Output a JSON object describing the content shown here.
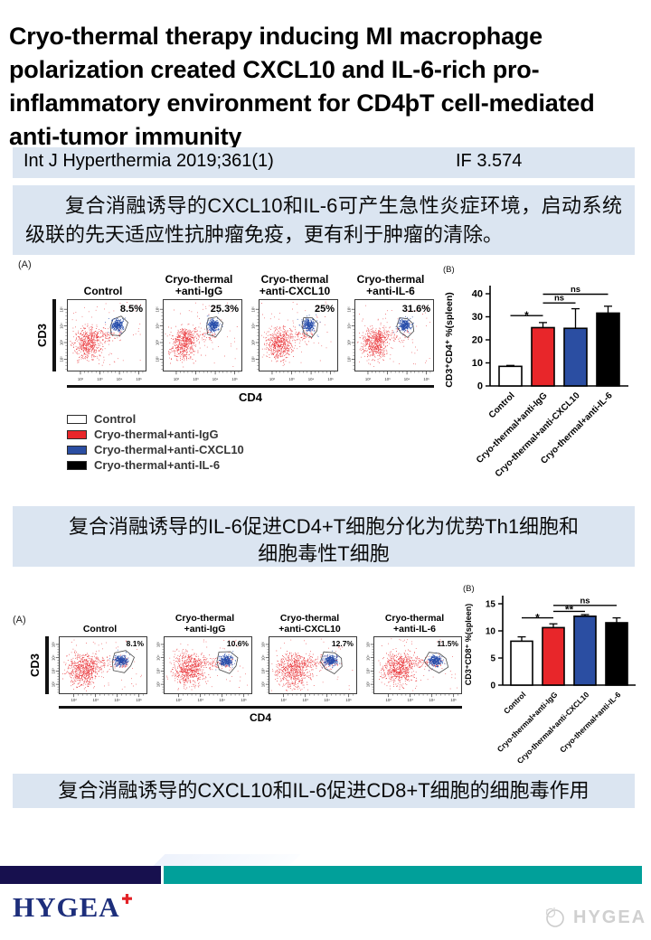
{
  "header": {
    "title": "Cryo-thermal therapy inducing MI macrophage polarization created CXCL10 and IL-6-rich pro-inflammatory environment for CD4þT cell-mediated anti-tumor immunity",
    "citation": "Int J Hyperthermia 2019;361(1)",
    "impact_factor": "IF 3.574"
  },
  "captions": {
    "block1": "复合消融诱导的CXCL10和IL-6可产生急性炎症环境，启动系统级联的先天适应性抗肿瘤免疫，更有利于肿瘤的清除。",
    "block2_lines": [
      "复合消融诱导的IL-6促进CD4+T细胞分化为优势Th1细胞和",
      "细胞毒性T细胞"
    ],
    "block3": "复合消融诱导的CXCL10和IL-6促进CD8+T细胞的细胞毒作用"
  },
  "colors": {
    "highlight_bg": "#dbe5f1",
    "red": "#e8262a",
    "blue": "#2b4ea2",
    "black": "#000000",
    "navy_bar": "#17104e",
    "teal_bar": "#01a09a",
    "brand_navy": "#1d2e7b",
    "cross_red": "#e32227"
  },
  "legend": {
    "items": [
      {
        "label": "Control",
        "color": "#ffffff"
      },
      {
        "label": "Cryo-thermal+anti-IgG",
        "color": "#e8262a"
      },
      {
        "label": "Cryo-thermal+anti-CXCL10",
        "color": "#2b4ea2"
      },
      {
        "label": "Cryo-thermal+anti-IL-6",
        "color": "#000000"
      }
    ]
  },
  "flow_figures": [
    {
      "id": "fig1-a",
      "panel_label": "(A)",
      "xlabel": "CD4",
      "ylabel": "CD3",
      "tick_labels": [
        "10²",
        "10³",
        "10⁴",
        "10⁵"
      ],
      "plots": [
        {
          "title_lines": [
            "Control"
          ],
          "percent": "8.5%"
        },
        {
          "title_lines": [
            "Cryo-thermal",
            "+anti-IgG"
          ],
          "percent": "25.3%"
        },
        {
          "title_lines": [
            "Cryo-thermal",
            "+anti-CXCL10"
          ],
          "percent": "25%"
        },
        {
          "title_lines": [
            "Cryo-thermal",
            "+anti-IL-6"
          ],
          "percent": "31.6%"
        }
      ]
    },
    {
      "id": "fig2-a",
      "panel_label": "(A)",
      "xlabel": "CD4",
      "ylabel": "CD3",
      "tick_labels": [
        "10²",
        "10³",
        "10⁴",
        "10⁵"
      ],
      "plots": [
        {
          "title_lines": [
            "Control"
          ],
          "percent": "8.1%"
        },
        {
          "title_lines": [
            "Cryo-thermal",
            "+anti-IgG"
          ],
          "percent": "10.6%"
        },
        {
          "title_lines": [
            "Cryo-thermal",
            "+anti-CXCL10"
          ],
          "percent": "12.7%"
        },
        {
          "title_lines": [
            "Cryo-thermal",
            "+anti-IL-6"
          ],
          "percent": "11.5%"
        }
      ]
    }
  ],
  "chart_data": [
    {
      "id": "fig1-b",
      "type": "bar",
      "panel_label": "(B)",
      "ylabel": "CD3⁺CD4⁺ %(spleen)",
      "categories": [
        "Control",
        "Cryo-thermal+anti-IgG",
        "Cryo-thermal+anti-CXCL10",
        "Cryo-thermal+anti-IL-6"
      ],
      "values": [
        8.5,
        25.3,
        25,
        31.6
      ],
      "errors": [
        0.4,
        2.2,
        8.5,
        3.0
      ],
      "bar_colors": [
        "#ffffff",
        "#e8262a",
        "#2b4ea2",
        "#000000"
      ],
      "ylim": [
        0,
        40
      ],
      "yticks": [
        0,
        10,
        20,
        30,
        40
      ],
      "legend_position": "none",
      "grid": false,
      "significance": [
        {
          "from": 0,
          "to": 1,
          "label": "*",
          "y": 30.5
        },
        {
          "from": 1,
          "to": 2,
          "label": "ns",
          "y": 36
        },
        {
          "from": 1,
          "to": 3,
          "label": "ns",
          "y": 39.8
        }
      ]
    },
    {
      "id": "fig2-b",
      "type": "bar",
      "panel_label": "(B)",
      "ylabel": "CD3⁺CD8⁺ %(spleen)",
      "categories": [
        "Control",
        "Cryo-thermal+anti-IgG",
        "Cryo-thermal+anti-CXCL10",
        "Cryo-thermal+anti-IL-6"
      ],
      "values": [
        8.1,
        10.6,
        12.7,
        11.5
      ],
      "errors": [
        0.8,
        0.7,
        0.3,
        0.9
      ],
      "bar_colors": [
        "#ffffff",
        "#e8262a",
        "#2b4ea2",
        "#000000"
      ],
      "ylim": [
        0,
        15
      ],
      "yticks": [
        0,
        5,
        10,
        15
      ],
      "legend_position": "none",
      "grid": false,
      "significance": [
        {
          "from": 0,
          "to": 1,
          "label": "*",
          "y": 12.4
        },
        {
          "from": 1,
          "to": 2,
          "label": "**",
          "y": 13.6
        },
        {
          "from": 1,
          "to": 3,
          "label": "ns",
          "y": 14.7
        }
      ]
    }
  ],
  "footer": {
    "brand": "HYGEA",
    "watermark": "HYGEA"
  }
}
